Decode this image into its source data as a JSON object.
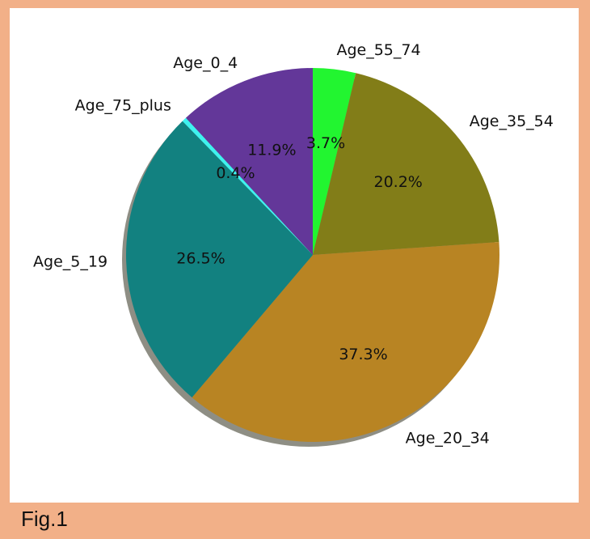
{
  "caption": "Fig.1",
  "chart_data": {
    "type": "pie",
    "start_angle_deg": 90,
    "direction": "clockwise",
    "shadow": true,
    "slices": [
      {
        "label": "Age_55_74",
        "value": 3.7,
        "pct_text": "3.7%",
        "color": "#22f530"
      },
      {
        "label": "Age_35_54",
        "value": 20.2,
        "pct_text": "20.2%",
        "color": "#827d18"
      },
      {
        "label": "Age_20_34",
        "value": 37.3,
        "pct_text": "37.3%",
        "color": "#b88423"
      },
      {
        "label": "Age_5_19",
        "value": 26.5,
        "pct_text": "26.5%",
        "color": "#128180"
      },
      {
        "label": "Age_75_plus",
        "value": 0.4,
        "pct_text": "0.4%",
        "color": "#3ef2ef"
      },
      {
        "label": "Age_0_4",
        "value": 11.9,
        "pct_text": "11.9%",
        "color": "#633799"
      }
    ]
  }
}
